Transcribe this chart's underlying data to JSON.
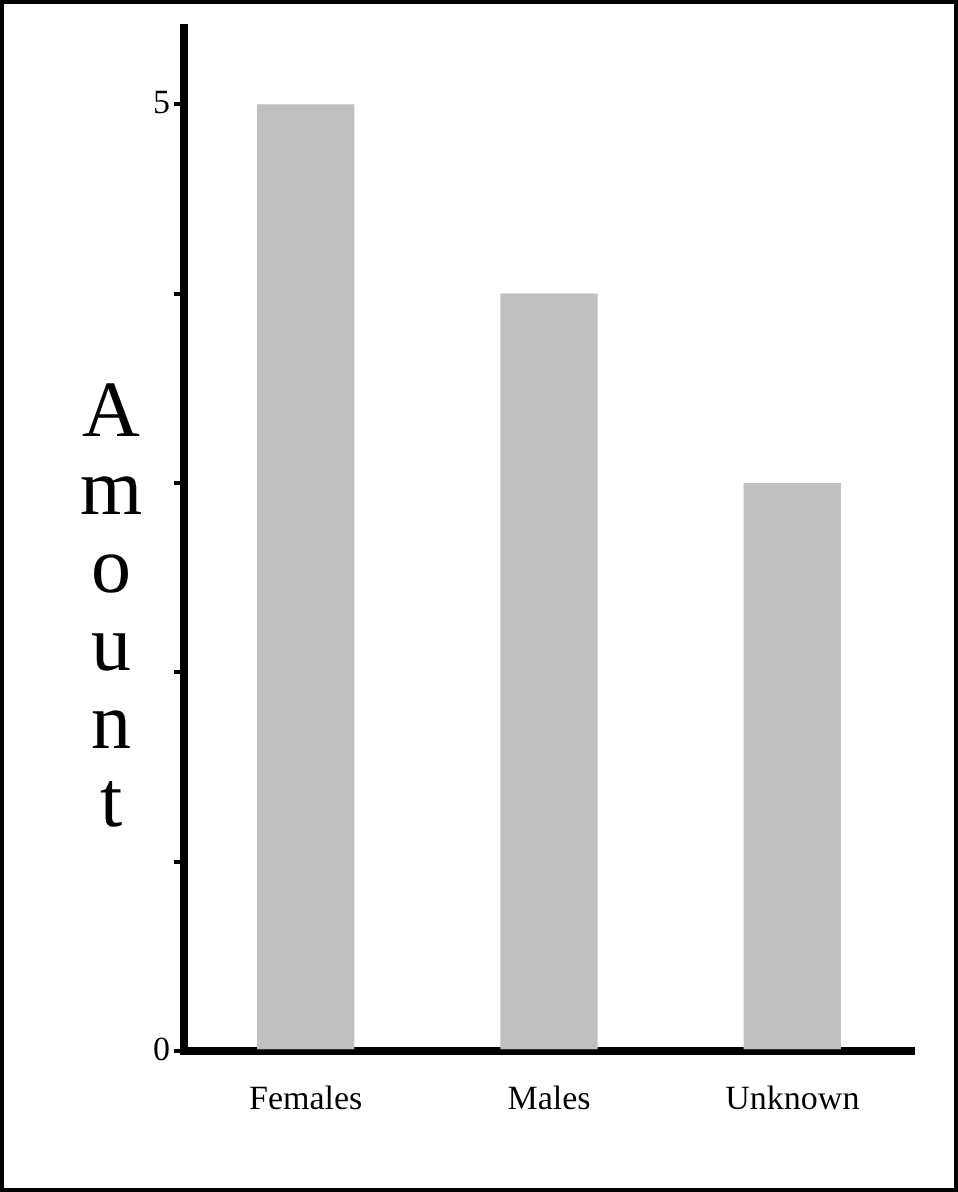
{
  "chart_data": {
    "type": "bar",
    "ylabel": "Amount",
    "categories": [
      "Females",
      "Males",
      "Unknown"
    ],
    "values": [
      5,
      4,
      3
    ],
    "color": "#c0c0c0",
    "ylim": [
      0,
      5.4
    ],
    "yticks": [
      0,
      {
        "value": 1,
        "label": null
      },
      {
        "value": 2,
        "label": null
      },
      {
        "value": 3,
        "label": null
      },
      {
        "value": 4,
        "label": null
      },
      5
    ],
    "grid": false,
    "legend": false
  }
}
